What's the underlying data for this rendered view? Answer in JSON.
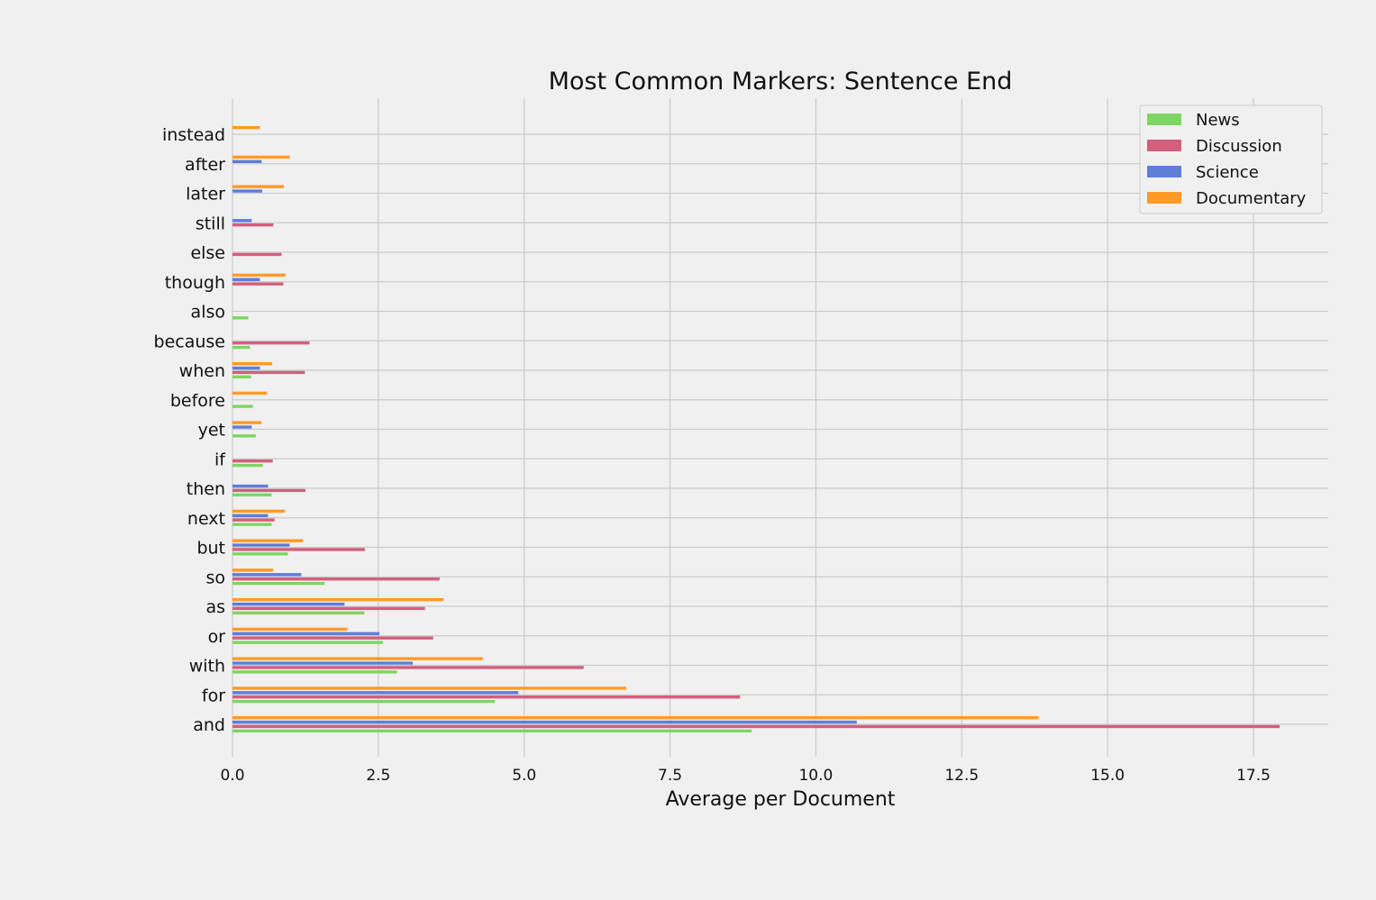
{
  "chart_data": {
    "type": "bar",
    "orientation": "horizontal",
    "title": "Most Common Markers: Sentence End",
    "xlabel": "Average per Document",
    "ylabel": "",
    "xlim": [
      0,
      18.8
    ],
    "xticks": [
      "0.0",
      "2.5",
      "5.0",
      "7.5",
      "10.0",
      "12.5",
      "15.0",
      "17.5"
    ],
    "xtick_values": [
      0,
      2.5,
      5.0,
      7.5,
      10.0,
      12.5,
      15.0,
      17.5
    ],
    "grid": true,
    "legend_position": "top-right",
    "categories": [
      "and",
      "for",
      "with",
      "or",
      "as",
      "so",
      "but",
      "next",
      "then",
      "if",
      "yet",
      "before",
      "when",
      "because",
      "also",
      "though",
      "else",
      "still",
      "later",
      "after",
      "instead"
    ],
    "series": [
      {
        "name": "News",
        "color": "#7ed563",
        "values": [
          8.9,
          4.5,
          2.82,
          2.58,
          2.26,
          1.58,
          0.95,
          0.67,
          0.67,
          0.52,
          0.4,
          0.35,
          0.32,
          0.3,
          0.27,
          0,
          0,
          0,
          0,
          0,
          0
        ]
      },
      {
        "name": "Discussion",
        "color": "#d35f7d",
        "values": [
          17.95,
          8.7,
          6.02,
          3.44,
          3.3,
          3.55,
          2.27,
          0.72,
          1.25,
          0.69,
          0,
          0,
          1.24,
          1.32,
          0,
          0.87,
          0.84,
          0.7,
          0,
          0,
          0
        ]
      },
      {
        "name": "Science",
        "color": "#5f7ed8",
        "values": [
          10.7,
          4.9,
          3.09,
          2.52,
          1.92,
          1.18,
          0.98,
          0.61,
          0.61,
          0,
          0.33,
          0,
          0.47,
          0,
          0,
          0.47,
          0,
          0.33,
          0.51,
          0.5,
          0
        ]
      },
      {
        "name": "Documentary",
        "color": "#ff9a26",
        "values": [
          13.82,
          6.75,
          4.29,
          1.97,
          3.62,
          0.7,
          1.21,
          0.9,
          0,
          0,
          0.5,
          0.59,
          0.68,
          0,
          0,
          0.91,
          0,
          0,
          0.88,
          0.98,
          0.47
        ]
      }
    ]
  }
}
